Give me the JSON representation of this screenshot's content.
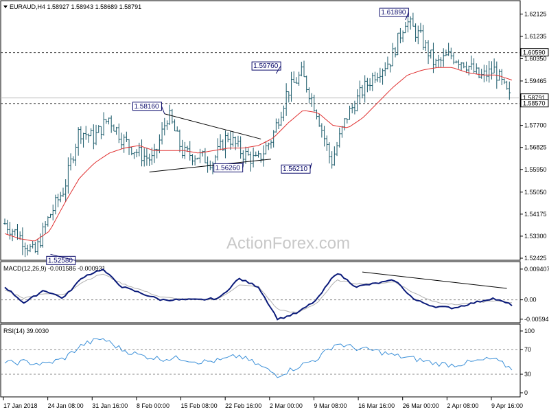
{
  "header": {
    "symbol_line": "EURAUD,H4  1.58927 1.58943 1.58689 1.58791"
  },
  "watermark": "ActionForex.com",
  "colors": {
    "candle": "#1a5a6a",
    "ma": "#e03030",
    "macd": "#0a1a7a",
    "signal": "#b0b0b0",
    "rsi": "#3a8fd8",
    "level_line": "#444444"
  },
  "chart_data": [
    {
      "type": "candlestick",
      "title": "EURAUD,H4",
      "last_ohlc": {
        "open": 1.58927,
        "high": 1.58943,
        "low": 1.58689,
        "close": 1.58791
      },
      "ylim": [
        1.52425,
        1.623
      ],
      "y_ticks": [
        "1.62125",
        "1.61235",
        "1.60350",
        "1.59465",
        "1.58575",
        "1.57700",
        "1.56825",
        "1.55950",
        "1.55050",
        "1.54175",
        "1.53300",
        "1.52425"
      ],
      "x_ticks": [
        "17 Jan 2018",
        "24 Jan 08:00",
        "31 Jan 16:00",
        "8 Feb 00:00",
        "15 Feb 08:00",
        "22 Feb 16:00",
        "2 Mar 00:00",
        "9 Mar 08:00",
        "16 Mar 16:00",
        "26 Mar 00:00",
        "2 Apr 08:00",
        "9 Apr 16:00"
      ],
      "price_tags": [
        {
          "text": "1.60590",
          "value": 1.6059
        },
        {
          "text": "1.58791",
          "value": 1.58791
        },
        {
          "text": "1.58570",
          "value": 1.5857
        }
      ],
      "horizontal_levels": [
        1.6059,
        1.5857,
        1.58791
      ],
      "annotations": [
        "1.61890",
        "1.59760",
        "1.58160",
        "1.56260",
        "1.56210",
        "1.52580"
      ],
      "path": [
        1.538,
        1.533,
        1.5258,
        1.541,
        1.552,
        1.575,
        1.572,
        1.58,
        1.571,
        1.566,
        1.563,
        1.5816,
        1.566,
        1.565,
        1.5626,
        1.573,
        1.566,
        1.5626,
        1.572,
        1.59,
        1.5976,
        1.583,
        1.5621,
        1.58,
        1.59,
        1.598,
        1.603,
        1.6189,
        1.612,
        1.601,
        1.605,
        1.602,
        1.596,
        1.599,
        1.5879
      ],
      "ma_path": [
        1.534,
        1.532,
        1.531,
        1.535,
        1.546,
        1.556,
        1.562,
        1.566,
        1.568,
        1.569,
        1.567,
        1.567,
        1.567,
        1.566,
        1.567,
        1.568,
        1.568,
        1.569,
        1.572,
        1.578,
        1.583,
        1.582,
        1.577,
        1.576,
        1.58,
        1.586,
        1.592,
        1.597,
        1.599,
        1.6,
        1.6,
        1.598,
        1.597,
        1.597,
        1.595
      ]
    },
    {
      "type": "line",
      "title": "MACD(12,26,9) -0.001586 -0.000931",
      "ylim": [
        -0.0066,
        0.0098
      ],
      "y_ticks": [
        "0.009407",
        "0.00",
        "-0.00594"
      ],
      "macd_path": [
        0.004,
        -0.001,
        0.003,
        0.0005,
        0.007,
        0.0094,
        0.004,
        0.002,
        0.0,
        0.0,
        0.0,
        0.0005,
        0.0065,
        0.004,
        -0.006,
        -0.004,
        0.0,
        0.0085,
        0.004,
        0.005,
        0.006,
        0.0,
        -0.002,
        -0.0025,
        -0.001,
        0.0005,
        -0.0016
      ],
      "signal_path": [
        0.003,
        0.0005,
        0.002,
        0.0015,
        0.0055,
        0.008,
        0.005,
        0.003,
        0.0008,
        0.0003,
        0.0,
        0.0004,
        0.0045,
        0.004,
        -0.003,
        -0.004,
        -0.001,
        0.006,
        0.005,
        0.005,
        0.0055,
        0.002,
        -0.0005,
        -0.0015,
        -0.001,
        -0.0003,
        -0.0009
      ]
    },
    {
      "type": "line",
      "title": "RSI(14) 39.0030",
      "ylim": [
        0,
        100
      ],
      "y_ticks": [
        "100",
        "70",
        "30",
        "0"
      ],
      "rsi_path": [
        48,
        50,
        46,
        55,
        78,
        88,
        70,
        60,
        55,
        56,
        50,
        52,
        60,
        45,
        28,
        42,
        55,
        80,
        72,
        68,
        60,
        55,
        48,
        45,
        50,
        55,
        39
      ]
    }
  ]
}
